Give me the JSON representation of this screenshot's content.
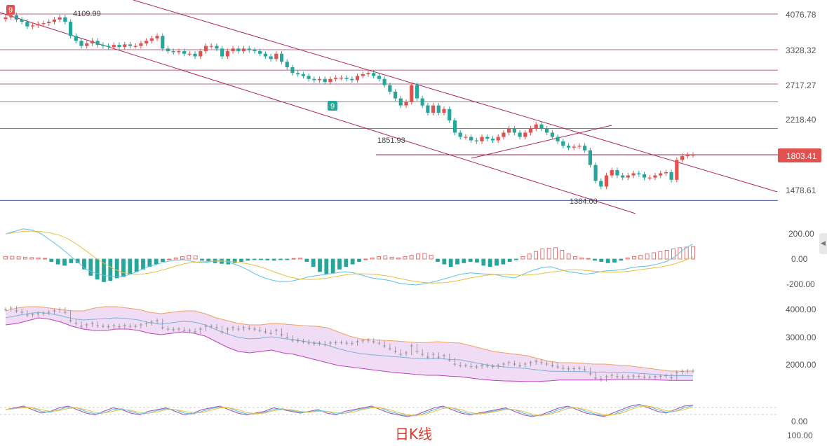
{
  "chart_data": {
    "type": "candlestick",
    "title": "",
    "caption": "日K线",
    "price_axis": {
      "ticks": [
        "4076.78",
        "3328.32",
        "2717.27",
        "2218.40",
        "1478.61"
      ],
      "current_price": "1803.41",
      "horizontal_levels": [
        4076.78,
        3328.32,
        2950,
        2717.27,
        2450,
        2100,
        1803.41,
        1384
      ]
    },
    "annotations": {
      "high_label": "4109.99",
      "mid_label": "1851.93",
      "low_label": "1384.00",
      "marker_9_top": "9",
      "marker_9_mid": "9"
    },
    "closes": [
      4000,
      4050,
      3950,
      3900,
      3800,
      3820,
      3850,
      3870,
      3900,
      3950,
      4000,
      3900,
      3600,
      3500,
      3400,
      3450,
      3500,
      3420,
      3400,
      3380,
      3420,
      3380,
      3430,
      3400,
      3400,
      3450,
      3500,
      3550,
      3600,
      3350,
      3300,
      3280,
      3300,
      3250,
      3250,
      3200,
      3300,
      3400,
      3400,
      3350,
      3200,
      3300,
      3350,
      3300,
      3350,
      3320,
      3300,
      3250,
      3200,
      3150,
      3250,
      3100,
      3000,
      2900,
      2880,
      2850,
      2800,
      2780,
      2800,
      2750,
      2800,
      2820,
      2820,
      2800,
      2780,
      2850,
      2880,
      2900,
      2850,
      2800,
      2700,
      2600,
      2500,
      2400,
      2450,
      2700,
      2500,
      2400,
      2300,
      2400,
      2300,
      2350,
      2200,
      2050,
      2000,
      2000,
      1960,
      1950,
      2000,
      1980,
      1960,
      2000,
      2050,
      2100,
      2050,
      2000,
      2050,
      2100,
      2150,
      2100,
      2050,
      2000,
      1950,
      1900,
      1880,
      1890,
      1900,
      1850,
      1700,
      1550,
      1500,
      1600,
      1650,
      1600,
      1580,
      1600,
      1620,
      1610,
      1580,
      1580,
      1600,
      1620,
      1630,
      1560,
      1750,
      1790,
      1800,
      1803
    ],
    "macd": {
      "ticks": [
        "200.00",
        "0.00",
        "-200.00"
      ],
      "histogram": [
        20,
        22,
        18,
        15,
        12,
        10,
        6,
        -20,
        -40,
        -50,
        -30,
        -30,
        -80,
        -130,
        -160,
        -180,
        -170,
        -150,
        -140,
        -120,
        -100,
        -80,
        -60,
        -40,
        -20,
        0,
        10,
        20,
        30,
        25,
        -10,
        -20,
        -30,
        -35,
        -40,
        -30,
        -20,
        -10,
        -5,
        -3,
        -8,
        -10,
        -5,
        -2,
        5,
        8,
        -20,
        -60,
        -100,
        -120,
        -110,
        -80,
        -60,
        -40,
        -20,
        0,
        10,
        20,
        25,
        15,
        10,
        20,
        30,
        40,
        45,
        30,
        -20,
        -40,
        -60,
        -40,
        -30,
        -20,
        -25,
        -50,
        -60,
        -50,
        -40,
        -20,
        -5,
        20,
        40,
        60,
        80,
        85,
        90,
        70,
        40,
        20,
        10,
        5,
        -10,
        -20,
        -30,
        -25,
        -10,
        10,
        20,
        30,
        40,
        50,
        60,
        70,
        80,
        90,
        95,
        100
      ],
      "dif": [
        200,
        220,
        240,
        230,
        200,
        150,
        100,
        40,
        -20,
        -80,
        -110,
        -130,
        -140,
        -140,
        -120,
        -90,
        -60,
        -40,
        -20,
        -10,
        -5,
        -20,
        -30,
        -20,
        -10,
        -25,
        -50,
        -80,
        -120,
        -150,
        -170,
        -180,
        -175,
        -160,
        -140,
        -130,
        -120,
        -110,
        -100,
        -110,
        -130,
        -150,
        -160,
        -170,
        -190,
        -200,
        -205,
        -195,
        -180,
        -160,
        -140,
        -120,
        -110,
        -115,
        -120,
        -125,
        -140,
        -150,
        -120,
        -90,
        -70,
        -60,
        -80,
        -100,
        -110,
        -120,
        -110,
        -95,
        -90,
        -85,
        -70,
        -60,
        -55,
        -40,
        -20,
        20,
        80,
        120
      ]
    },
    "bollinger": {
      "ticks": [
        "4000.00",
        "3000.00",
        "2000.00"
      ],
      "upper": [
        3950,
        4050,
        4100,
        4100,
        4050,
        4000,
        3950,
        3950,
        4050,
        4100,
        4100,
        4050,
        4000,
        3900,
        3850,
        3900,
        3950,
        3950,
        3850,
        3700,
        3600,
        3500,
        3450,
        3450,
        3500,
        3480,
        3450,
        3420,
        3400,
        3350,
        3200,
        3050,
        2950,
        2920,
        2900,
        2880,
        2850,
        2820,
        2820,
        2850,
        2820,
        2800,
        2700,
        2600,
        2500,
        2450,
        2400,
        2350,
        2250,
        2150,
        2100,
        2100,
        2080,
        2050,
        2050,
        2020,
        2000,
        1950,
        1900,
        1850,
        1800,
        1800,
        1800
      ],
      "lower": [
        3450,
        3500,
        3600,
        3700,
        3650,
        3550,
        3400,
        3300,
        3250,
        3250,
        3300,
        3300,
        3250,
        3150,
        3100,
        3150,
        3200,
        3150,
        3050,
        2850,
        2650,
        2500,
        2450,
        2500,
        2550,
        2450,
        2400,
        2300,
        2200,
        2100,
        2000,
        1950,
        1900,
        1850,
        1800,
        1750,
        1720,
        1680,
        1650,
        1650,
        1620,
        1600,
        1550,
        1500,
        1470,
        1450,
        1440,
        1430,
        1430,
        1450,
        1480,
        1480,
        1480,
        1480,
        1480,
        1500,
        1500,
        1500,
        1500,
        1480,
        1470,
        1470,
        1470
      ]
    },
    "kdj": {
      "ticks": [
        "0.00",
        "100.00"
      ],
      "k": [
        60,
        70,
        80,
        60,
        40,
        50,
        70,
        80,
        60,
        40,
        30,
        50,
        70,
        60,
        40,
        30,
        50,
        60,
        70,
        50,
        30,
        40,
        60,
        70,
        80,
        60,
        40,
        30,
        40,
        50,
        70,
        60,
        50,
        40,
        50,
        60,
        40,
        30,
        50,
        60,
        70,
        80,
        60,
        40,
        30,
        20,
        30,
        50,
        70,
        80,
        60,
        40,
        30,
        40,
        50,
        60,
        70,
        50,
        30,
        20,
        30,
        50,
        70,
        80,
        60,
        40,
        30,
        20,
        40,
        60,
        80,
        90,
        70,
        50,
        40,
        60,
        80,
        85
      ]
    },
    "colors": {
      "up": "#e0514f",
      "down": "#26a69a",
      "channel": "#b0245a",
      "level_line": "#a03060",
      "bottom_line": "#2f3a8f",
      "price_tag": "#e0514f",
      "boll_fill": "#f1dcf5",
      "boll_upper": "#f0a060",
      "boll_lower": "#c040c0",
      "dif": "#5bc0e8",
      "dea": "#e8c040"
    }
  }
}
